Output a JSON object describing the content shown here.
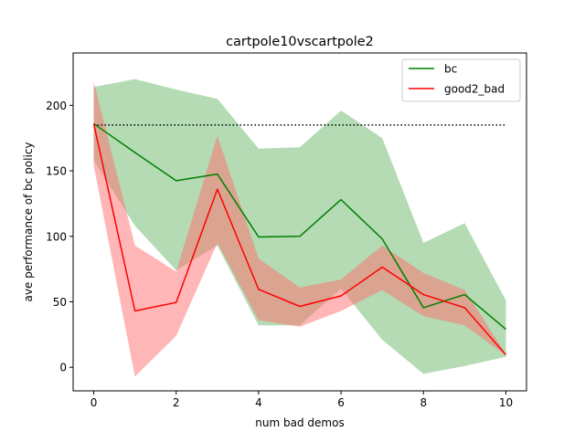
{
  "chart_data": {
    "type": "line",
    "title": "cartpole10vscartpole2",
    "xlabel": "num bad demos",
    "ylabel": "ave performance of bc policy",
    "xlim": [
      -0.5,
      10.5
    ],
    "ylim": [
      -18,
      240
    ],
    "xticks": [
      0,
      2,
      4,
      6,
      8,
      10
    ],
    "yticks": [
      0,
      50,
      100,
      150,
      200
    ],
    "grid": false,
    "legend_position": "top-right",
    "x": [
      0,
      1,
      2,
      3,
      4,
      5,
      6,
      7,
      8,
      9,
      10
    ],
    "series": [
      {
        "name": "bc",
        "color": "#008000",
        "band_color": "#6ab86a",
        "values": [
          186,
          164,
          142.5,
          147.5,
          99.5,
          100,
          128,
          98,
          45.5,
          55.5,
          29
        ],
        "upper": [
          214,
          220,
          212,
          205,
          167,
          168,
          196,
          175,
          95,
          110,
          51
        ],
        "lower": [
          158,
          108,
          74,
          93,
          32,
          32,
          60,
          21,
          -5,
          1,
          8
        ]
      },
      {
        "name": "good2_bad",
        "color": "#ff0000",
        "band_color": "#ff6e6e",
        "values": [
          186,
          43,
          49.5,
          136,
          59.5,
          46.5,
          54.5,
          76.5,
          55.5,
          45.5,
          9.5
        ],
        "upper": [
          218,
          93,
          73,
          177,
          83,
          61,
          67,
          93,
          72,
          59,
          10
        ],
        "lower": [
          154,
          -7,
          24,
          95,
          36,
          31,
          43,
          59,
          39,
          32,
          9
        ]
      }
    ],
    "reference_line": {
      "y": 185,
      "x_range": [
        0,
        10
      ],
      "style": "dotted",
      "color": "#000000"
    }
  }
}
